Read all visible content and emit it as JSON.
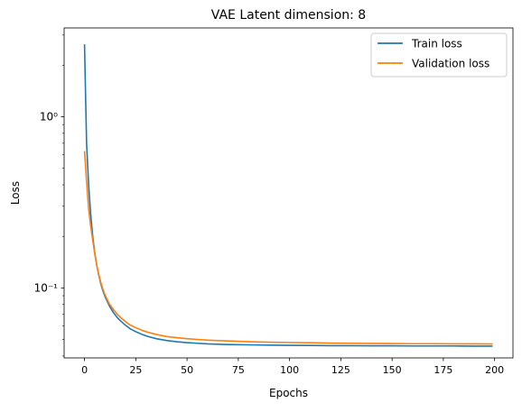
{
  "chart_data": {
    "type": "line",
    "title": "VAE Latent dimension: 8",
    "xlabel": "Epochs",
    "ylabel": "Loss",
    "xlim": [
      -9.95,
      208.95
    ],
    "ylim": [
      0.039,
      3.3
    ],
    "yscale": "log",
    "grid": false,
    "legend_position": "top-right",
    "x_ticks": [
      0,
      25,
      50,
      75,
      100,
      125,
      150,
      175,
      200
    ],
    "x_tick_labels": [
      "0",
      "25",
      "50",
      "75",
      "100",
      "125",
      "150",
      "175",
      "200"
    ],
    "y_major_ticks": [
      0.1,
      1.0
    ],
    "y_tick_labels": [
      "10⁻¹",
      "10⁰"
    ],
    "y_minor_ticks": [
      0.04,
      0.05,
      0.06,
      0.07,
      0.08,
      0.09,
      0.2,
      0.3,
      0.4,
      0.5,
      0.6,
      0.7,
      0.8,
      0.9,
      2,
      3
    ],
    "series": [
      {
        "name": "Train loss",
        "color": "#1f77b4",
        "x": [
          0,
          1,
          2,
          3,
          4,
          5,
          6,
          7,
          8,
          9,
          10,
          12,
          14,
          16,
          18,
          20,
          22,
          25,
          28,
          31,
          35,
          40,
          45,
          50,
          55,
          60,
          70,
          80,
          90,
          100,
          110,
          120,
          130,
          140,
          150,
          160,
          170,
          180,
          190,
          199
        ],
        "y": [
          2.65,
          0.7,
          0.4,
          0.27,
          0.2,
          0.16,
          0.135,
          0.118,
          0.105,
          0.096,
          0.089,
          0.079,
          0.072,
          0.067,
          0.0635,
          0.0605,
          0.058,
          0.0555,
          0.0535,
          0.052,
          0.0505,
          0.0493,
          0.0485,
          0.0479,
          0.0475,
          0.0471,
          0.0467,
          0.0465,
          0.0463,
          0.0462,
          0.0461,
          0.046,
          0.046,
          0.0459,
          0.0459,
          0.0458,
          0.0458,
          0.0458,
          0.0457,
          0.0457
        ]
      },
      {
        "name": "Validation loss",
        "color": "#ff7f0e",
        "x": [
          0,
          1,
          2,
          3,
          4,
          5,
          6,
          7,
          8,
          9,
          10,
          12,
          14,
          16,
          18,
          20,
          22,
          25,
          28,
          31,
          35,
          40,
          45,
          50,
          55,
          60,
          70,
          80,
          90,
          100,
          110,
          120,
          130,
          140,
          150,
          160,
          170,
          180,
          190,
          199
        ],
        "y": [
          0.63,
          0.42,
          0.29,
          0.23,
          0.19,
          0.158,
          0.135,
          0.119,
          0.107,
          0.098,
          0.091,
          0.081,
          0.075,
          0.07,
          0.0665,
          0.0635,
          0.061,
          0.0585,
          0.0565,
          0.055,
          0.0535,
          0.052,
          0.0512,
          0.0505,
          0.05,
          0.0495,
          0.049,
          0.0485,
          0.0482,
          0.048,
          0.0478,
          0.0476,
          0.0475,
          0.0474,
          0.0473,
          0.0472,
          0.0472,
          0.0471,
          0.0471,
          0.047
        ]
      }
    ]
  }
}
